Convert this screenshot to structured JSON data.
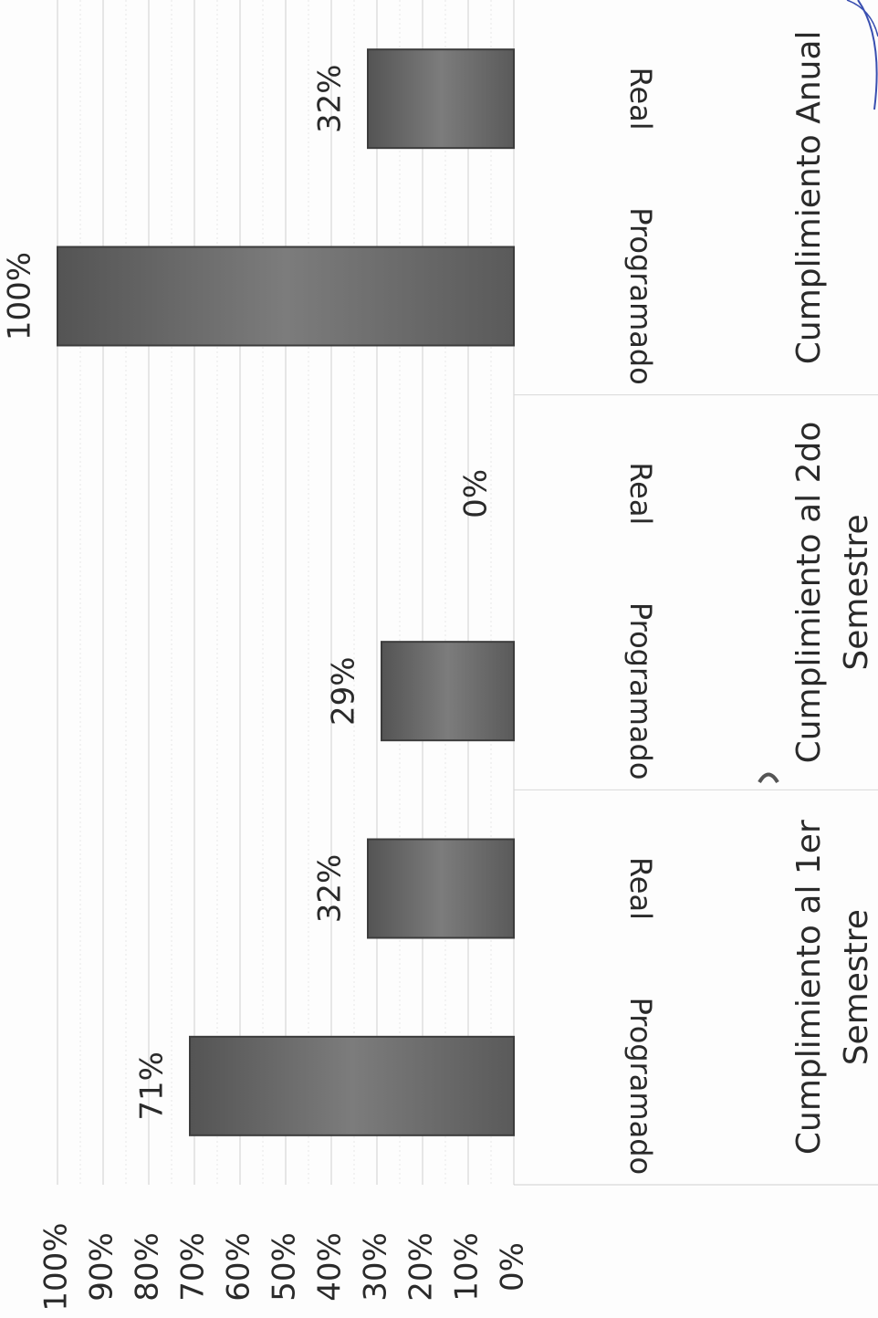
{
  "chart_data": {
    "type": "bar",
    "orientation": "rotated-90",
    "ylim": [
      0,
      100
    ],
    "yticks": [
      "0%",
      "10%",
      "20%",
      "30%",
      "40%",
      "50%",
      "60%",
      "70%",
      "80%",
      "90%",
      "100%"
    ],
    "groups": [
      {
        "label_lines": [
          "Cumplimiento al 1er",
          "Semestre"
        ],
        "bars": [
          {
            "category": "Programado",
            "value": 71,
            "label": "71%"
          },
          {
            "category": "Real",
            "value": 32,
            "label": "32%"
          }
        ]
      },
      {
        "label_lines": [
          "Cumplimiento al 2do",
          "Semestre"
        ],
        "bars": [
          {
            "category": "Programado",
            "value": 29,
            "label": "29%"
          },
          {
            "category": "Real",
            "value": 0,
            "label": "0%"
          }
        ]
      },
      {
        "label_lines": [
          "Cumplimiento Anual"
        ],
        "bars": [
          {
            "category": "Programado",
            "value": 100,
            "label": "100%"
          },
          {
            "category": "Real",
            "value": 32,
            "label": "32%"
          }
        ]
      }
    ],
    "grid": true,
    "colors": {
      "bar": "#6f6f6f",
      "bar_edge": "#3c3c3c",
      "grid": "#d0d0d0",
      "text": "#2a2a2a"
    }
  }
}
